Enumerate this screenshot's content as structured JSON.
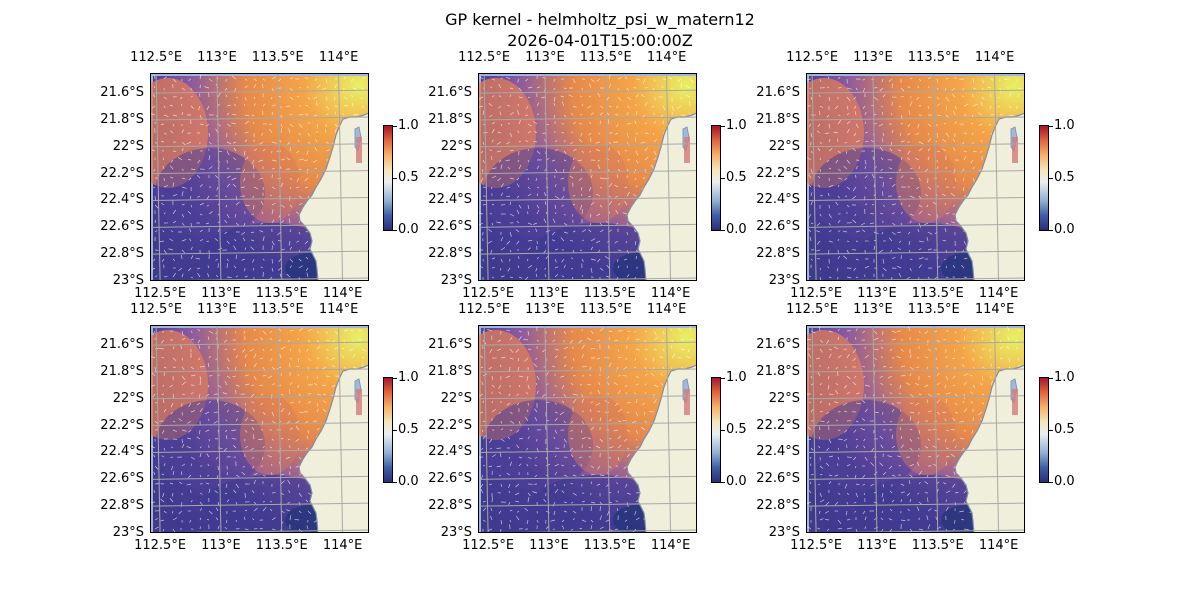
{
  "figure": {
    "title_line_1": "GP kernel - helmholtz_psi_w_matern12",
    "title_line_2": "2026-04-01T15:00:00Z"
  },
  "map_axes": {
    "lon_ticks": [
      "112.5°E",
      "113°E",
      "113.5°E",
      "114°E"
    ],
    "lon_values": [
      112.5,
      113.0,
      113.5,
      114.0
    ],
    "lat_ticks": [
      "21.6°S",
      "21.8°S",
      "22°S",
      "22.2°S",
      "22.4°S",
      "22.6°S",
      "22.8°S",
      "23°S"
    ],
    "lat_values": [
      -21.6,
      -21.8,
      -22.0,
      -22.2,
      -22.4,
      -22.6,
      -22.8,
      -23.0
    ],
    "lon_range": [
      112.45,
      114.25
    ],
    "lat_range": [
      -23.0,
      -21.45
    ],
    "gridlines": true
  },
  "colorbar": {
    "ticks": [
      "0.0",
      "0.5",
      "1.0"
    ],
    "tick_values": [
      0.0,
      0.5,
      1.0
    ],
    "range": [
      0.0,
      1.0
    ],
    "colormap": "RdYlBu_r"
  },
  "colors": {
    "land": "#efefdc",
    "coast": "#7f8ea8",
    "ocean_edge": "#9db9e0",
    "grid": "#a8a8a8",
    "field_low": "#4a3c96",
    "field_mid": "#e6894b",
    "field_high": "#e8f064",
    "arrows": "#ffffff"
  },
  "panels": [
    {
      "id": "panel-1"
    },
    {
      "id": "panel-2"
    },
    {
      "id": "panel-3"
    },
    {
      "id": "panel-4"
    },
    {
      "id": "panel-5"
    },
    {
      "id": "panel-6"
    }
  ]
}
